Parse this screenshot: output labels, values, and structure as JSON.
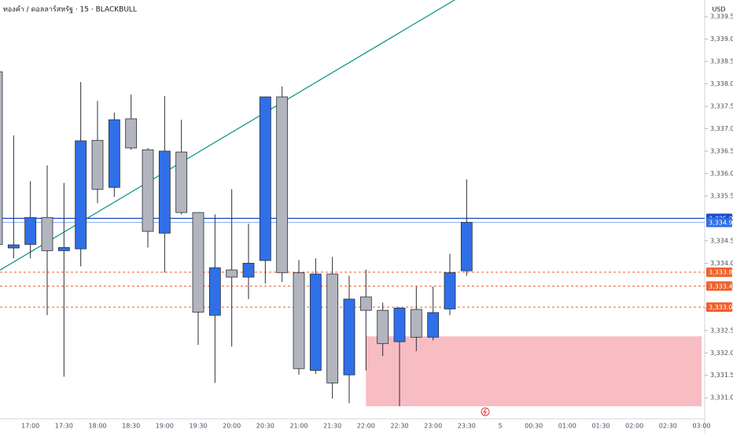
{
  "chart_data": {
    "type": "candlestick",
    "title": "ทองคำ / ดอลลาร์สหรัฐ · 15 · BLACKBULL",
    "currency": "USD",
    "categories": [
      null,
      null,
      "17:00",
      null,
      "17:30",
      null,
      "18:00",
      null,
      "18:30",
      null,
      "19:00",
      null,
      "19:30",
      null,
      "20:00",
      null,
      "20:30",
      null,
      "21:00",
      null,
      "21:30",
      null,
      "22:00",
      null,
      "22:30",
      null,
      "23:00",
      null,
      "23:30",
      null,
      "5",
      null,
      "00:30",
      null,
      "01:00",
      null,
      "01:30",
      null,
      "02:00",
      null,
      "02:30",
      null,
      "03:00"
    ],
    "open": [
      3338.27,
      3334.34,
      3334.42,
      3335.02,
      3334.28,
      3334.32,
      3336.74,
      3335.69,
      3337.22,
      3336.53,
      3334.67,
      3336.48,
      3335.13,
      3332.84,
      3333.85,
      3333.69,
      3334.06,
      3337.71,
      3333.79,
      3331.61,
      3333.76,
      3331.51,
      3333.25,
      3332.95,
      3332.25,
      3332.97,
      3332.35,
      3332.98,
      3333.83,
      null,
      null,
      null,
      null,
      null,
      null,
      null,
      null,
      null,
      null,
      null,
      null,
      null,
      null
    ],
    "high": [
      3338.27,
      3336.85,
      3335.83,
      3336.18,
      3335.79,
      3338.04,
      3337.62,
      3337.36,
      3337.76,
      3336.57,
      3337.73,
      3337.2,
      3335.13,
      3335.09,
      3335.65,
      3334.88,
      3337.71,
      3337.94,
      3334.07,
      3334.11,
      3334.14,
      3333.72,
      3333.86,
      3333.12,
      3333.02,
      3333.48,
      3333.48,
      3334.21,
      3335.87,
      null,
      null,
      null,
      null,
      null,
      null,
      null,
      null,
      null,
      null,
      null,
      null,
      null,
      null
    ],
    "low": [
      3334.28,
      3334.11,
      3334.11,
      3332.84,
      3331.47,
      3333.93,
      3335.34,
      3335.48,
      3336.53,
      3334.35,
      3333.79,
      3335.09,
      3332.18,
      3331.33,
      3332.14,
      3333.2,
      3333.55,
      3333.58,
      3331.51,
      3331.53,
      3330.98,
      3330.88,
      3331.61,
      3331.93,
      3330.81,
      3332.04,
      3332.28,
      3332.84,
      3333.72,
      null,
      null,
      null,
      null,
      null,
      null,
      null,
      null,
      null,
      null,
      null,
      null,
      null,
      null
    ],
    "close": [
      3334.42,
      3334.41,
      3335.02,
      3334.28,
      3334.35,
      3336.73,
      3335.65,
      3337.2,
      3336.57,
      3334.71,
      3336.5,
      3335.13,
      3332.91,
      3333.9,
      3333.69,
      3334.0,
      3337.71,
      3333.79,
      3331.65,
      3333.76,
      3331.33,
      3333.2,
      3332.95,
      3332.21,
      3333.0,
      3332.35,
      3332.9,
      3333.79,
      3334.91,
      null,
      null,
      null,
      null,
      null,
      null,
      null,
      null,
      null,
      null,
      null,
      null,
      null,
      null
    ],
    "up_color": "#2f6fe8",
    "down_color": "#b2b5be",
    "ylim": [
      3330.53,
      3339.87
    ],
    "yticks": [
      {
        "value": 3331,
        "label": "3,331.00"
      },
      {
        "value": 3331.5,
        "label": "3,331.50"
      },
      {
        "value": 3332,
        "label": "3,332.00"
      },
      {
        "value": 3332.5,
        "label": "3,332.50"
      },
      {
        "value": 3333,
        "label": "3,333.00"
      },
      {
        "value": 3333.5,
        "label": "3,333.50"
      },
      {
        "value": 3334,
        "label": "3,334.00"
      },
      {
        "value": 3334.5,
        "label": "3,334.50"
      },
      {
        "value": 3335,
        "label": "3,335.00"
      },
      {
        "value": 3335.5,
        "label": "3,335.50"
      },
      {
        "value": 3336,
        "label": "3,336.00"
      },
      {
        "value": 3336.5,
        "label": "3,336.50"
      },
      {
        "value": 3337,
        "label": "3,337.00"
      },
      {
        "value": 3337.5,
        "label": "3,337.50"
      },
      {
        "value": 3338,
        "label": "3,338.00"
      },
      {
        "value": 3338.5,
        "label": "3,338.50"
      },
      {
        "value": 3339,
        "label": "3,339.00"
      },
      {
        "value": 3339.5,
        "label": "3,339.50"
      }
    ],
    "price_lines": [
      {
        "value": 3335.0,
        "label": "3,335.00",
        "color": "#1848cc",
        "style": "solid"
      },
      {
        "value": 3334.91,
        "label": "3,334.91",
        "color": "#2f6fe8",
        "style": "solid"
      },
      {
        "value": 3333.8,
        "label": "3,333.80",
        "color": "#f0602a",
        "style": "dashed"
      },
      {
        "value": 3333.49,
        "label": "3,333.49",
        "color": "#f0602a",
        "style": "dashed"
      },
      {
        "value": 3333.02,
        "label": "3,333.02",
        "color": "#f0602a",
        "style": "dashed"
      }
    ],
    "zone": {
      "low": 3330.81,
      "high": 3332.37,
      "start": "22:00",
      "end": "03:00",
      "color": "#f8bcc3"
    },
    "trendline": {
      "start": [
        "17:00",
        3334.25
      ],
      "end": [
        "23:30",
        3340.03
      ],
      "color": "#159a8c"
    }
  }
}
